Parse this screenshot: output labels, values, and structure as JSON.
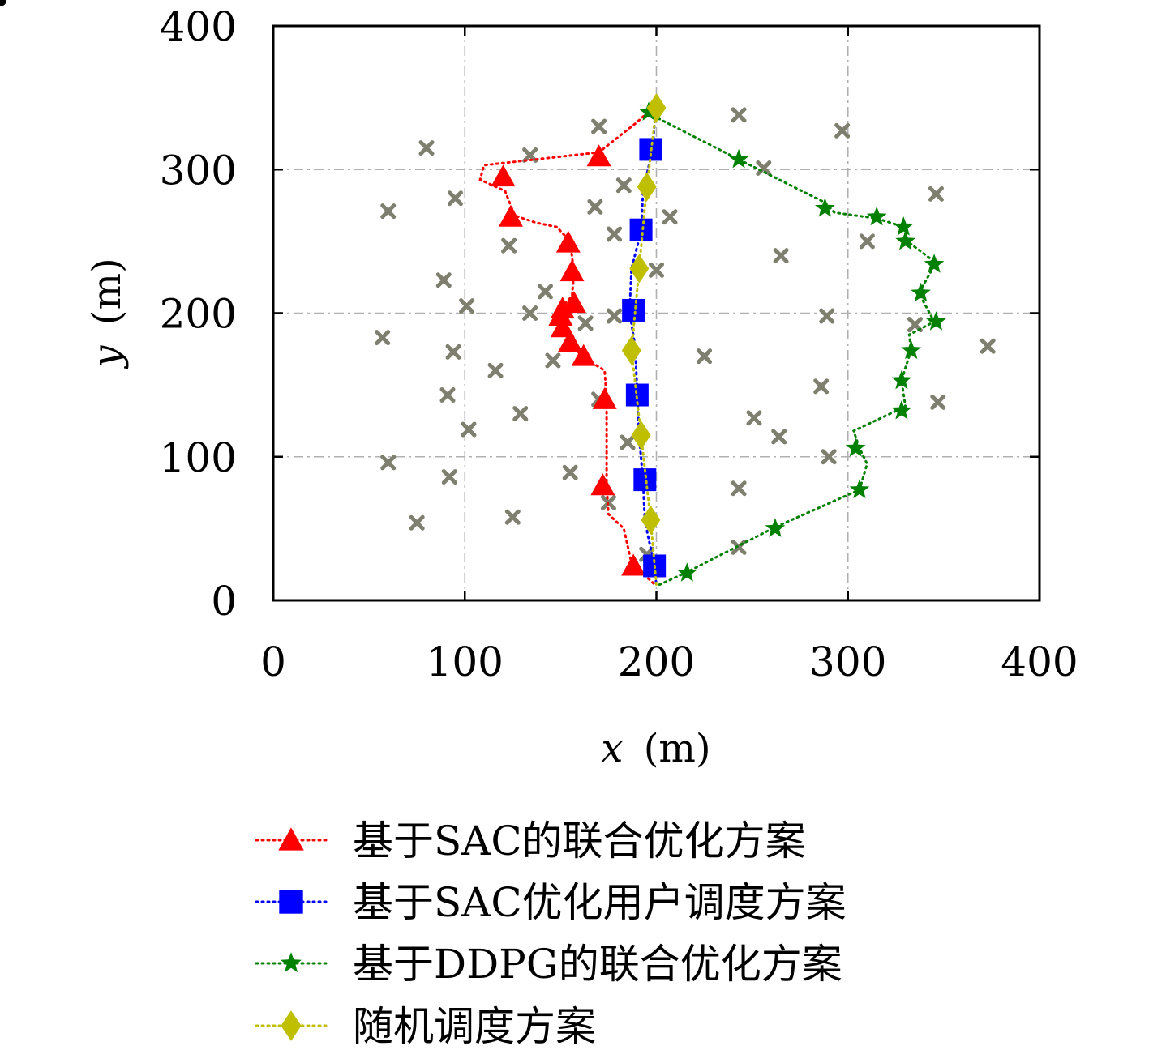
{
  "chart_data": {
    "type": "scatter",
    "title": "",
    "xlabel": {
      "var": "x",
      "unit": "(m)"
    },
    "ylabel": {
      "var": "y",
      "unit": "(m)"
    },
    "xlim": [
      0,
      400
    ],
    "ylim": [
      0,
      400
    ],
    "x_ticks": [
      "0",
      "100",
      "200",
      "300",
      "400"
    ],
    "y_ticks": [
      "0",
      "100",
      "200",
      "300",
      "400"
    ],
    "grid": true,
    "legend_position": "bottom",
    "colors": {
      "sac_joint": "#ff0000",
      "sac_user": "#0000ff",
      "ddpg_joint": "#008000",
      "random": "#bfbf00",
      "users": "#7f7f6f",
      "endpoints": "#000000"
    },
    "endpoints": [
      {
        "x": 200,
        "y": 350
      },
      {
        "x": 200,
        "y": 10
      }
    ],
    "users": [
      [
        80,
        315
      ],
      [
        170,
        330
      ],
      [
        134,
        310
      ],
      [
        243,
        338
      ],
      [
        297,
        327
      ],
      [
        95,
        280
      ],
      [
        60,
        271
      ],
      [
        168,
        274
      ],
      [
        183,
        289
      ],
      [
        207,
        267
      ],
      [
        256,
        301
      ],
      [
        346,
        283
      ],
      [
        123,
        247
      ],
      [
        178,
        255
      ],
      [
        265,
        240
      ],
      [
        310,
        250
      ],
      [
        89,
        223
      ],
      [
        200,
        230
      ],
      [
        142,
        215
      ],
      [
        101,
        205
      ],
      [
        134,
        200
      ],
      [
        178,
        198
      ],
      [
        163,
        193
      ],
      [
        289,
        198
      ],
      [
        335,
        192
      ],
      [
        57,
        183
      ],
      [
        94,
        173
      ],
      [
        146,
        167
      ],
      [
        225,
        170
      ],
      [
        373,
        177
      ],
      [
        116,
        160
      ],
      [
        91,
        143
      ],
      [
        129,
        130
      ],
      [
        170,
        140
      ],
      [
        286,
        149
      ],
      [
        347,
        138
      ],
      [
        102,
        119
      ],
      [
        185,
        110
      ],
      [
        251,
        127
      ],
      [
        264,
        114
      ],
      [
        60,
        96
      ],
      [
        155,
        89
      ],
      [
        290,
        100
      ],
      [
        92,
        86
      ],
      [
        175,
        68
      ],
      [
        243,
        78
      ],
      [
        125,
        58
      ],
      [
        75,
        54
      ],
      [
        195,
        32
      ],
      [
        243,
        37
      ]
    ],
    "series": [
      {
        "name": "基于SAC的联合优化方案",
        "color_key": "sac_joint",
        "marker": "triangle",
        "path": [
          [
            200,
            345
          ],
          [
            189,
            332
          ],
          [
            170,
            312
          ],
          [
            110,
            303
          ],
          [
            108,
            293
          ],
          [
            121,
            285
          ],
          [
            126,
            268
          ],
          [
            137,
            263
          ],
          [
            148,
            260
          ],
          [
            155,
            250
          ],
          [
            157,
            228
          ],
          [
            156,
            212
          ],
          [
            150,
            203
          ],
          [
            151,
            198
          ],
          [
            151,
            190
          ],
          [
            155,
            180
          ],
          [
            161,
            170
          ],
          [
            173,
            160
          ],
          [
            174,
            140
          ],
          [
            174,
            80
          ],
          [
            175,
            60
          ],
          [
            183,
            50
          ],
          [
            187,
            26
          ],
          [
            200,
            10
          ]
        ],
        "markers": [
          [
            170,
            309
          ],
          [
            120,
            295
          ],
          [
            124,
            267
          ],
          [
            154,
            249
          ],
          [
            156,
            229
          ],
          [
            157,
            207
          ],
          [
            151,
            203
          ],
          [
            150,
            198
          ],
          [
            151,
            190
          ],
          [
            155,
            180
          ],
          [
            162,
            170
          ],
          [
            173,
            140
          ],
          [
            172,
            80
          ],
          [
            188,
            24
          ]
        ]
      },
      {
        "name": "基于SAC优化用户调度方案",
        "color_key": "sac_user",
        "marker": "square",
        "path": [
          [
            200,
            350
          ],
          [
            198,
            314
          ],
          [
            193,
            285
          ],
          [
            192,
            257
          ],
          [
            187,
            231
          ],
          [
            186,
            201
          ],
          [
            189,
            176
          ],
          [
            190,
            143
          ],
          [
            191,
            115
          ],
          [
            193,
            83
          ],
          [
            194,
            55
          ],
          [
            199,
            24
          ],
          [
            200,
            10
          ]
        ],
        "markers": [
          [
            197,
            314
          ],
          [
            192,
            258
          ],
          [
            188,
            202
          ],
          [
            190,
            143
          ],
          [
            194,
            84
          ],
          [
            199,
            24
          ]
        ]
      },
      {
        "name": "基于DDPG的联合优化方案",
        "color_key": "ddpg_joint",
        "marker": "star",
        "path": [
          [
            200,
            350
          ],
          [
            196,
            339
          ],
          [
            243,
            307
          ],
          [
            288,
            277
          ],
          [
            293,
            270
          ],
          [
            315,
            266
          ],
          [
            329,
            260
          ],
          [
            331,
            250
          ],
          [
            343,
            238
          ],
          [
            345,
            233
          ],
          [
            337,
            214
          ],
          [
            345,
            194
          ],
          [
            332,
            185
          ],
          [
            333,
            174
          ],
          [
            330,
            162
          ],
          [
            328,
            153
          ],
          [
            330,
            135
          ],
          [
            303,
            118
          ],
          [
            306,
            106
          ],
          [
            310,
            95
          ],
          [
            306,
            77
          ],
          [
            262,
            51
          ],
          [
            215,
            19
          ],
          [
            200,
            10
          ]
        ],
        "markers": [
          [
            196,
            340
          ],
          [
            243,
            307
          ],
          [
            288,
            273
          ],
          [
            315,
            267
          ],
          [
            329,
            260
          ],
          [
            330,
            250
          ],
          [
            345,
            234
          ],
          [
            338,
            214
          ],
          [
            346,
            194
          ],
          [
            333,
            174
          ],
          [
            328,
            153
          ],
          [
            328,
            132
          ],
          [
            304,
            106
          ],
          [
            306,
            77
          ],
          [
            262,
            50
          ],
          [
            216,
            19
          ]
        ]
      },
      {
        "name": "随机调度方案",
        "color_key": "random",
        "marker": "diamond",
        "path": [
          [
            200,
            350
          ],
          [
            200,
            343
          ],
          [
            195,
            288
          ],
          [
            191,
            231
          ],
          [
            187,
            174
          ],
          [
            192,
            115
          ],
          [
            197,
            56
          ],
          [
            200,
            10
          ]
        ],
        "markers": [
          [
            200,
            343
          ],
          [
            195,
            288
          ],
          [
            191,
            231
          ],
          [
            187,
            174
          ],
          [
            192,
            115
          ],
          [
            197,
            56
          ]
        ]
      }
    ]
  }
}
